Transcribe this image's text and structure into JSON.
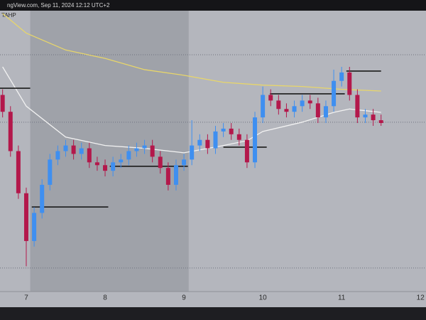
{
  "chart_data": {
    "type": "candlestick",
    "header": "ngView.com, Sep 11, 2024 12:12 UTC+2",
    "legend_label": "TAHP",
    "up_color": "#3f8ff0",
    "down_color": "#b3184b",
    "xlim": [
      6.667,
      12.07
    ],
    "xticks": [
      7,
      8,
      9,
      10,
      11,
      12
    ],
    "ylim": [
      0,
      100
    ],
    "session_shade": [
      7.05,
      9.06
    ],
    "x": [
      6.7,
      6.8,
      6.9,
      7.0,
      7.1,
      7.2,
      7.3,
      7.4,
      7.5,
      7.6,
      7.7,
      7.8,
      7.9,
      8.0,
      8.1,
      8.2,
      8.3,
      8.4,
      8.5,
      8.6,
      8.7,
      8.8,
      8.9,
      9.0,
      9.1,
      9.2,
      9.3,
      9.4,
      9.5,
      9.6,
      9.7,
      9.8,
      9.9,
      10.0,
      10.1,
      10.2,
      10.3,
      10.4,
      10.5,
      10.6,
      10.7,
      10.8,
      10.9,
      11.0,
      11.1,
      11.2,
      11.3,
      11.4,
      11.5
    ],
    "open": [
      70,
      64,
      50,
      35,
      18,
      28,
      38,
      47,
      50,
      52,
      49,
      51,
      46,
      45,
      43,
      46,
      47,
      50,
      51,
      52,
      48,
      44,
      38,
      45,
      47,
      52,
      54,
      51,
      57,
      58,
      56,
      54,
      46,
      62,
      70,
      68,
      65,
      64,
      66,
      68,
      67,
      62,
      66,
      75,
      78,
      70,
      62,
      63,
      61
    ],
    "close": [
      64,
      50,
      35,
      18,
      28,
      38,
      47,
      50,
      52,
      49,
      51,
      46,
      45,
      43,
      46,
      47,
      50,
      51,
      52,
      48,
      44,
      38,
      45,
      47,
      52,
      54,
      51,
      57,
      58,
      56,
      54,
      46,
      62,
      70,
      68,
      65,
      64,
      66,
      68,
      67,
      62,
      66,
      75,
      78,
      70,
      62,
      63,
      61,
      60
    ],
    "high": [
      72,
      66,
      52,
      37,
      30,
      40,
      49,
      52,
      54,
      54,
      53,
      53,
      48,
      47,
      48,
      49,
      52,
      53,
      54,
      54,
      50,
      46,
      47,
      49,
      61,
      56,
      56,
      59,
      60,
      60,
      58,
      56,
      64,
      73,
      72,
      70,
      67,
      68,
      70,
      70,
      69,
      68,
      79,
      80,
      80,
      72,
      65,
      65,
      63
    ],
    "low": [
      62,
      48,
      33,
      9,
      16,
      26,
      36,
      45,
      48,
      47,
      47,
      44,
      43,
      41,
      41,
      44,
      45,
      48,
      49,
      46,
      42,
      36,
      36,
      43,
      45,
      50,
      49,
      49,
      55,
      54,
      52,
      44,
      44,
      60,
      66,
      63,
      62,
      62,
      64,
      65,
      60,
      60,
      64,
      73,
      68,
      60,
      60,
      59,
      59
    ],
    "lines": [
      {
        "color": "#e8d66a",
        "x": [
          6.7,
          7.0,
          7.5,
          8.0,
          8.5,
          9.0,
          9.5,
          10.0,
          10.5,
          11.0,
          11.5
        ],
        "values": [
          99,
          92,
          86,
          83,
          79,
          77,
          74.5,
          73.5,
          73,
          72,
          71.4
        ]
      },
      {
        "color": "#f2f2f2",
        "x": [
          6.7,
          7.0,
          7.5,
          8.0,
          8.5,
          9.0,
          9.5,
          9.8,
          10.0,
          10.5,
          10.9,
          11.1,
          11.5
        ],
        "values": [
          80,
          66,
          55,
          52,
          51,
          49.4,
          52,
          53.7,
          57,
          60.3,
          63.8,
          65,
          63.8
        ]
      }
    ],
    "levels": [
      {
        "x": [
          6.667,
          7.05
        ],
        "value": 72.4
      },
      {
        "x": [
          7.07,
          8.04
        ],
        "value": 30.1
      },
      {
        "x": [
          8.06,
          9.05
        ],
        "value": 44.6
      },
      {
        "x": [
          9.5,
          10.05
        ],
        "value": 51.4
      },
      {
        "x": [
          10.09,
          11.04
        ],
        "value": 70.4
      },
      {
        "x": [
          11.06,
          11.5
        ],
        "value": 78.5
      }
    ],
    "hlines": [
      84.3,
      60.3,
      8.4
    ]
  }
}
